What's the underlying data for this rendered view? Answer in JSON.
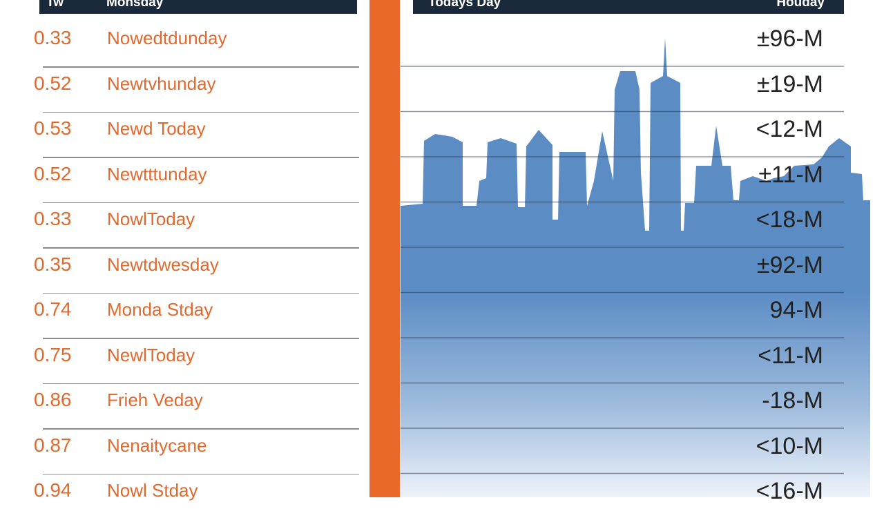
{
  "left_header": {
    "col1": "Tw",
    "col2": "Monsday"
  },
  "right_header": {
    "col1": "Todays Day",
    "col2": "Houday"
  },
  "rows": [
    {
      "value": "0.33",
      "label": "Nowedtdunday"
    },
    {
      "value": "0.52",
      "label": "Newtvhunday"
    },
    {
      "value": "0.53",
      "label": "Newd Today"
    },
    {
      "value": "0.52",
      "label": "Newtttunday"
    },
    {
      "value": "0.33",
      "label": "NowlToday"
    },
    {
      "value": "0.35",
      "label": "Newtdwesday"
    },
    {
      "value": "0.74",
      "label": "Monda Stday"
    },
    {
      "value": "0.75",
      "label": "NewlToday"
    },
    {
      "value": "0.86",
      "label": "Frieh Veday"
    },
    {
      "value": "0.87",
      "label": "Nenaitycane"
    },
    {
      "value": "0.94",
      "label": "Nowl Stday"
    }
  ],
  "colors": {
    "accent": "#e8692a",
    "header_bg": "#1b2a3a",
    "text_orange": "#e06a2e",
    "chart_blue": "#5b8cc4"
  },
  "chart_data": {
    "type": "area",
    "title": "",
    "xlabel": "",
    "ylabel": "",
    "y_tick_labels": [
      "±96-M",
      "±19-M",
      "<12-M",
      "±11-M",
      "<18-M",
      "±92-M",
      "94-M",
      "<11-M",
      "-18-M",
      "<10-M",
      "<16-M"
    ],
    "grid": true,
    "description_series": [
      {
        "name": "",
        "values": []
      }
    ]
  }
}
